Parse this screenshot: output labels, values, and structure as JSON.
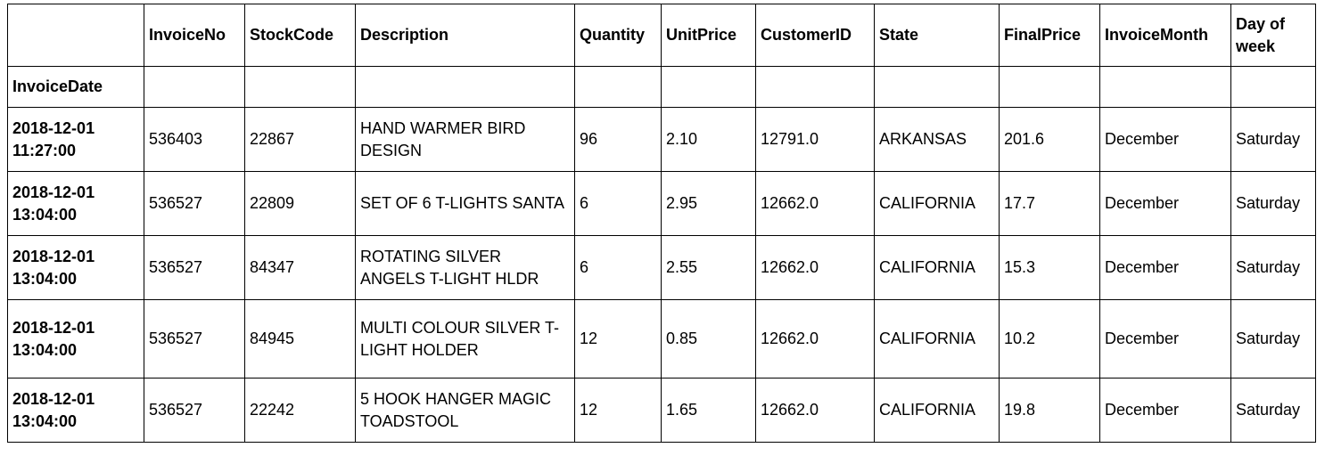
{
  "table": {
    "columns": [
      "InvoiceNo",
      "StockCode",
      "Description",
      "Quantity",
      "UnitPrice",
      "CustomerID",
      "State",
      "FinalPrice",
      "InvoiceMonth",
      "Day of week"
    ],
    "index_name": "InvoiceDate",
    "rows": [
      {
        "date_line1": "2018-12-01",
        "date_line2": "11:27:00",
        "InvoiceNo": "536403",
        "StockCode": "22867",
        "Description": "HAND WARMER BIRD DESIGN",
        "Quantity": "96",
        "UnitPrice": "2.10",
        "CustomerID": "12791.0",
        "State": "ARKANSAS",
        "FinalPrice": "201.6",
        "InvoiceMonth": "December",
        "DayOfWeek": "Saturday"
      },
      {
        "date_line1": "2018-12-01",
        "date_line2": "13:04:00",
        "InvoiceNo": "536527",
        "StockCode": "22809",
        "Description": "SET OF 6 T-LIGHTS SANTA",
        "Quantity": "6",
        "UnitPrice": "2.95",
        "CustomerID": "12662.0",
        "State": "CALIFORNIA",
        "FinalPrice": "17.7",
        "InvoiceMonth": "December",
        "DayOfWeek": "Saturday"
      },
      {
        "date_line1": "2018-12-01",
        "date_line2": "13:04:00",
        "InvoiceNo": "536527",
        "StockCode": "84347",
        "Description": "ROTATING SILVER ANGELS T-LIGHT HLDR",
        "Quantity": "6",
        "UnitPrice": "2.55",
        "CustomerID": "12662.0",
        "State": "CALIFORNIA",
        "FinalPrice": "15.3",
        "InvoiceMonth": "December",
        "DayOfWeek": "Saturday"
      },
      {
        "date_line1": "2018-12-01",
        "date_line2": "13:04:00",
        "InvoiceNo": "536527",
        "StockCode": "84945",
        "Description": "MULTI COLOUR SILVER T-LIGHT HOLDER",
        "Quantity": "12",
        "UnitPrice": "0.85",
        "CustomerID": "12662.0",
        "State": "CALIFORNIA",
        "FinalPrice": "10.2",
        "InvoiceMonth": "December",
        "DayOfWeek": "Saturday"
      },
      {
        "date_line1": "2018-12-01",
        "date_line2": "13:04:00",
        "InvoiceNo": "536527",
        "StockCode": "22242",
        "Description": "5 HOOK HANGER MAGIC TOADSTOOL",
        "Quantity": "12",
        "UnitPrice": "1.65",
        "CustomerID": "12662.0",
        "State": "CALIFORNIA",
        "FinalPrice": "19.8",
        "InvoiceMonth": "December",
        "DayOfWeek": "Saturday"
      }
    ]
  },
  "colors": {
    "border": "#000000",
    "text": "#000000",
    "background": "#ffffff"
  }
}
